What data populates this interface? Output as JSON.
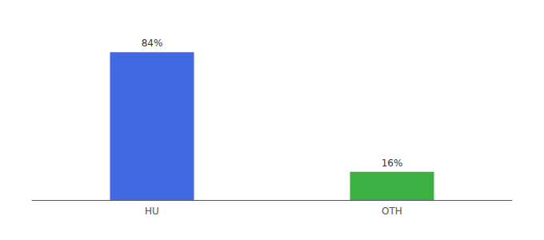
{
  "chart_data": {
    "type": "bar",
    "categories": [
      "HU",
      "OTH"
    ],
    "values": [
      84,
      16
    ],
    "colors": [
      "#4169e1",
      "#3cb043"
    ],
    "value_labels": [
      "84%",
      "16%"
    ],
    "data_labels": true,
    "ylim": [
      0,
      100
    ],
    "tick_labels": "x",
    "grid": false
  }
}
